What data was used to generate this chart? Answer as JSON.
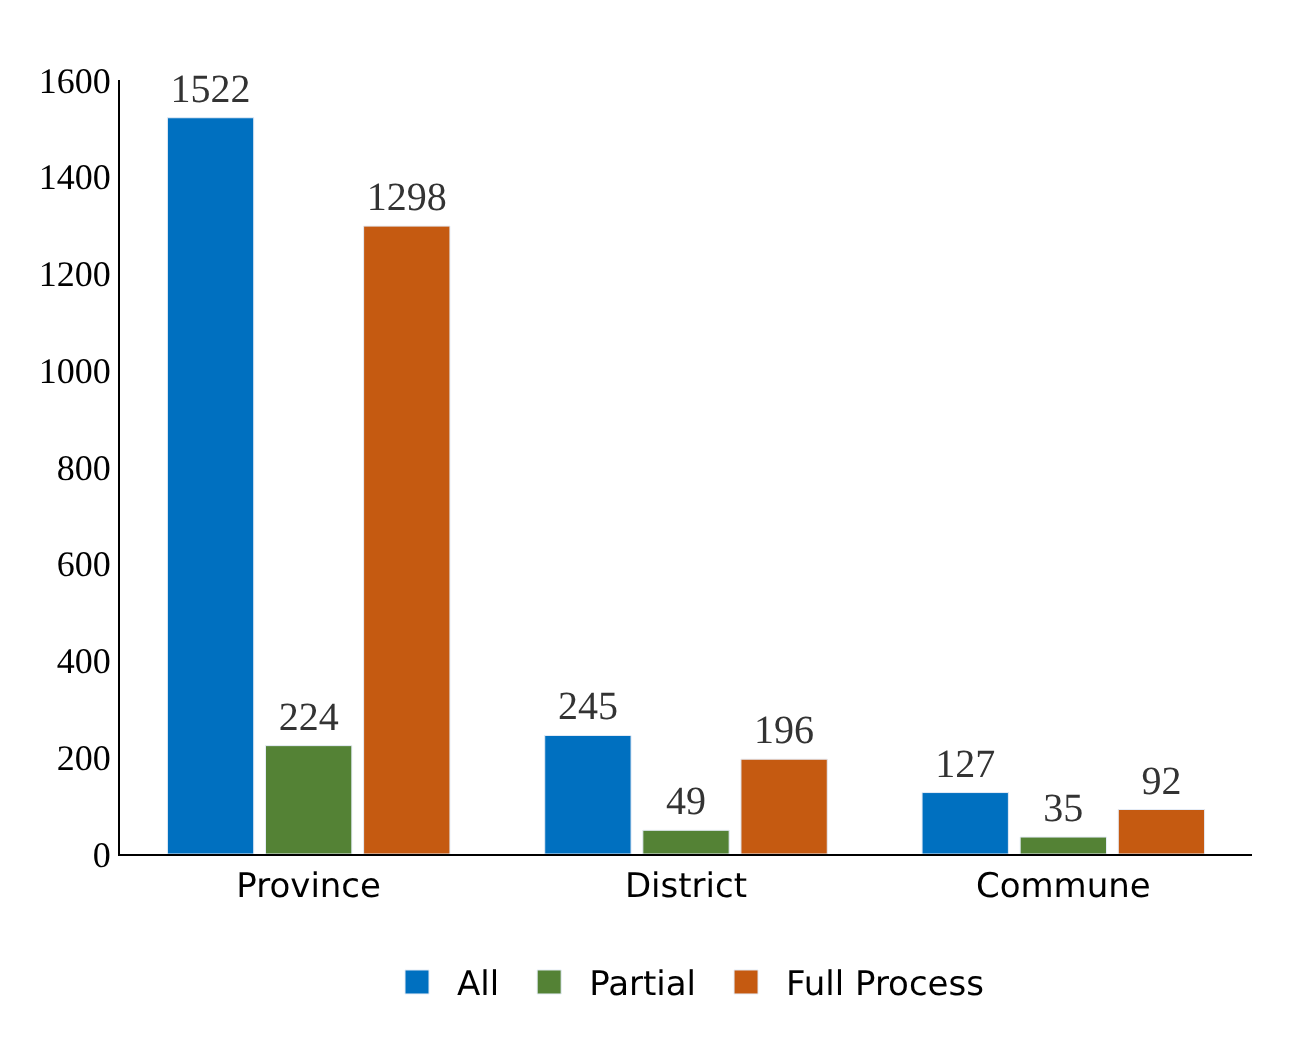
{
  "chart_data": {
    "type": "bar",
    "categories": [
      "Province",
      "District",
      "Commune"
    ],
    "series": [
      {
        "name": "All",
        "color": "#0070c0",
        "values": [
          1522,
          245,
          127
        ]
      },
      {
        "name": "Partial",
        "color": "#548235",
        "values": [
          224,
          49,
          35
        ]
      },
      {
        "name": "Full Process",
        "color": "#c55a11",
        "values": [
          1298,
          196,
          92
        ]
      }
    ],
    "ylim": [
      0,
      1600
    ],
    "yticks": [
      0,
      200,
      400,
      600,
      800,
      1000,
      1200,
      1400,
      1600
    ],
    "data_labels": true,
    "legend": "bottom"
  }
}
